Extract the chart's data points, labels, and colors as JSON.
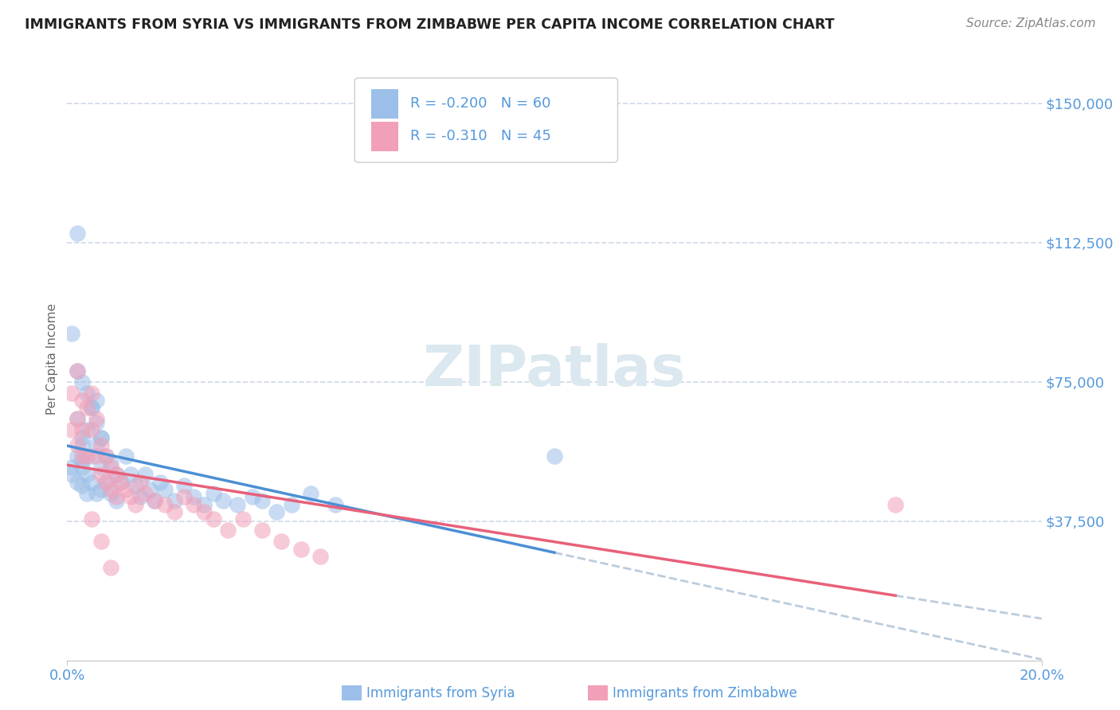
{
  "title": "IMMIGRANTS FROM SYRIA VS IMMIGRANTS FROM ZIMBABWE PER CAPITA INCOME CORRELATION CHART",
  "source": "Source: ZipAtlas.com",
  "ylabel": "Per Capita Income",
  "xlim": [
    0.0,
    0.2
  ],
  "ylim": [
    0,
    162500
  ],
  "ytick_values": [
    37500,
    75000,
    112500,
    150000
  ],
  "ytick_labels": [
    "$37,500",
    "$75,000",
    "$112,500",
    "$150,000"
  ],
  "background_color": "#ffffff",
  "grid_color": "#d0d8e8",
  "legend_R_syria": "-0.200",
  "legend_N_syria": "60",
  "legend_R_zimbabwe": "-0.310",
  "legend_N_zimbabwe": "45",
  "syria_color": "#9BBFE8",
  "zimbabwe_color": "#F2A0B8",
  "trendline_syria_color": "#4B8FD4",
  "trendline_zimbabwe_color": "#E8607A",
  "trendline_dash_color": "#bbccdd",
  "axis_label_color": "#5599DD",
  "title_color": "#222222",
  "source_color": "#888888",
  "watermark_color": "#dce8f0",
  "syria_scatter_x": [
    0.001,
    0.001,
    0.002,
    0.002,
    0.002,
    0.003,
    0.003,
    0.003,
    0.003,
    0.004,
    0.004,
    0.004,
    0.005,
    0.005,
    0.005,
    0.006,
    0.006,
    0.006,
    0.007,
    0.007,
    0.007,
    0.008,
    0.008,
    0.009,
    0.009,
    0.01,
    0.01,
    0.011,
    0.012,
    0.013,
    0.014,
    0.015,
    0.016,
    0.017,
    0.018,
    0.019,
    0.02,
    0.022,
    0.024,
    0.026,
    0.028,
    0.03,
    0.032,
    0.035,
    0.038,
    0.04,
    0.043,
    0.046,
    0.05,
    0.055,
    0.001,
    0.002,
    0.003,
    0.004,
    0.005,
    0.006,
    0.007,
    0.002,
    0.003,
    0.1
  ],
  "syria_scatter_y": [
    52000,
    50000,
    55000,
    48000,
    65000,
    60000,
    58000,
    54000,
    47000,
    62000,
    50000,
    45000,
    68000,
    55000,
    48000,
    70000,
    58000,
    45000,
    60000,
    52000,
    46000,
    55000,
    48000,
    53000,
    45000,
    50000,
    43000,
    48000,
    55000,
    50000,
    47000,
    44000,
    50000,
    46000,
    43000,
    48000,
    46000,
    43000,
    47000,
    44000,
    42000,
    45000,
    43000,
    42000,
    44000,
    43000,
    40000,
    42000,
    45000,
    42000,
    88000,
    78000,
    75000,
    72000,
    68000,
    64000,
    60000,
    115000,
    52000,
    55000
  ],
  "zimbabwe_scatter_x": [
    0.001,
    0.001,
    0.002,
    0.002,
    0.002,
    0.003,
    0.003,
    0.004,
    0.004,
    0.005,
    0.005,
    0.006,
    0.006,
    0.007,
    0.007,
    0.008,
    0.008,
    0.009,
    0.009,
    0.01,
    0.01,
    0.011,
    0.012,
    0.013,
    0.014,
    0.015,
    0.016,
    0.018,
    0.02,
    0.022,
    0.024,
    0.026,
    0.028,
    0.03,
    0.033,
    0.036,
    0.04,
    0.044,
    0.048,
    0.052,
    0.003,
    0.005,
    0.007,
    0.17,
    0.009
  ],
  "zimbabwe_scatter_y": [
    62000,
    72000,
    65000,
    78000,
    58000,
    70000,
    62000,
    68000,
    55000,
    72000,
    62000,
    65000,
    55000,
    58000,
    50000,
    55000,
    48000,
    52000,
    46000,
    50000,
    44000,
    48000,
    46000,
    44000,
    42000,
    48000,
    45000,
    43000,
    42000,
    40000,
    44000,
    42000,
    40000,
    38000,
    35000,
    38000,
    35000,
    32000,
    30000,
    28000,
    55000,
    38000,
    32000,
    42000,
    25000
  ]
}
